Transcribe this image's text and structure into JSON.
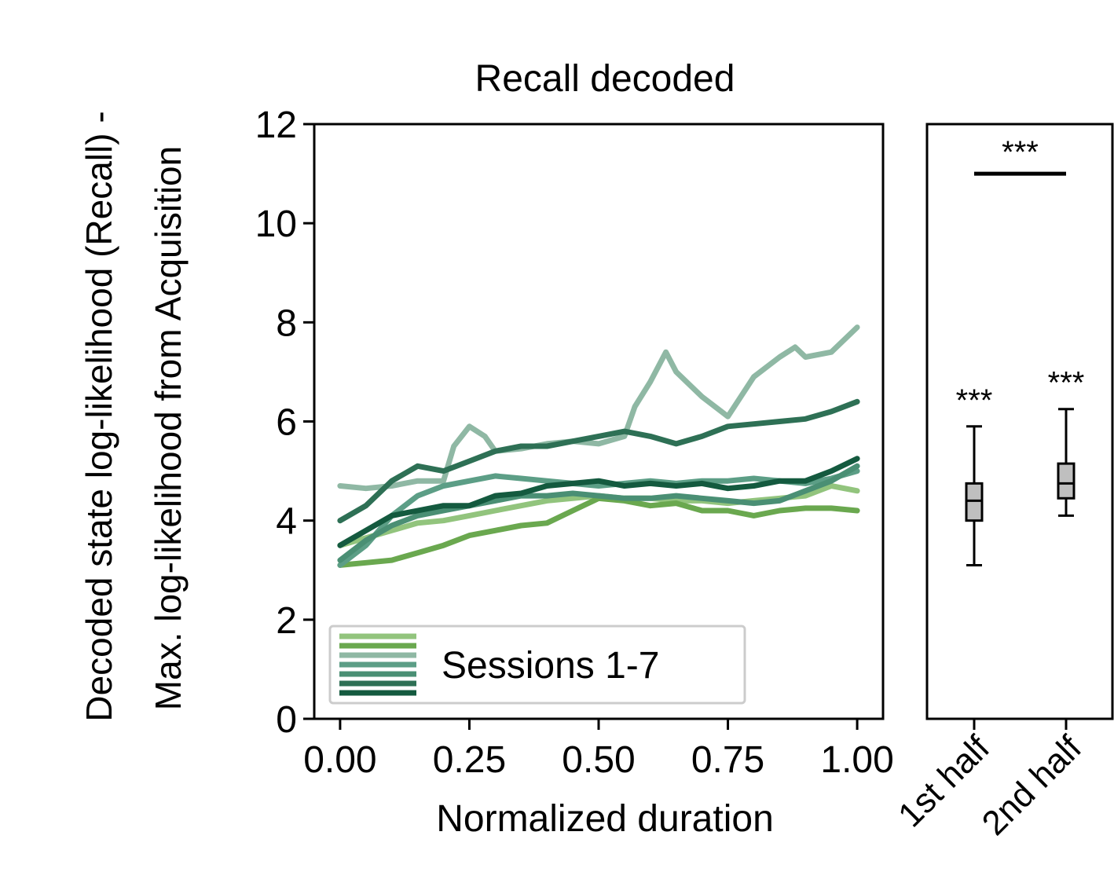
{
  "chart_data": [
    {
      "type": "line",
      "title": "Recall decoded",
      "xlabel": "Normalized duration",
      "ylabel": [
        "Decoded state log-likelihood (Recall) -",
        "Max. log-likelihood from Acquisition"
      ],
      "xlim": [
        -0.05,
        1.05
      ],
      "ylim": [
        0,
        12
      ],
      "xticks": [
        0,
        0.25,
        0.5,
        0.75,
        1.0
      ],
      "xtick_labels": [
        "0.00",
        "0.25",
        "0.50",
        "0.75",
        "1.00"
      ],
      "yticks": [
        0,
        2,
        4,
        6,
        8,
        10,
        12
      ],
      "ytick_labels": [
        "0",
        "2",
        "4",
        "6",
        "8",
        "10",
        "12"
      ],
      "grid": false,
      "legend": {
        "label": "Sessions 1-7",
        "position": "lower-left"
      },
      "series": [
        {
          "color": "#92c47d",
          "x": [
            0,
            0.05,
            0.1,
            0.15,
            0.2,
            0.25,
            0.3,
            0.35,
            0.4,
            0.45,
            0.5,
            0.55,
            0.6,
            0.65,
            0.7,
            0.75,
            0.8,
            0.85,
            0.9,
            0.95,
            1.0
          ],
          "y": [
            3.5,
            3.65,
            3.8,
            3.95,
            4.0,
            4.1,
            4.2,
            4.3,
            4.4,
            4.45,
            4.5,
            4.45,
            4.45,
            4.4,
            4.4,
            4.35,
            4.4,
            4.45,
            4.5,
            4.7,
            4.6
          ]
        },
        {
          "color": "#6aa84f",
          "x": [
            0,
            0.05,
            0.1,
            0.15,
            0.2,
            0.25,
            0.3,
            0.35,
            0.4,
            0.45,
            0.5,
            0.55,
            0.6,
            0.65,
            0.7,
            0.75,
            0.8,
            0.85,
            0.9,
            0.95,
            1.0
          ],
          "y": [
            3.1,
            3.15,
            3.2,
            3.35,
            3.5,
            3.7,
            3.8,
            3.9,
            3.95,
            4.2,
            4.45,
            4.4,
            4.3,
            4.35,
            4.2,
            4.2,
            4.1,
            4.2,
            4.25,
            4.25,
            4.2
          ]
        },
        {
          "color": "#8fb8a4",
          "x": [
            0,
            0.05,
            0.1,
            0.15,
            0.2,
            0.22,
            0.25,
            0.28,
            0.3,
            0.35,
            0.4,
            0.45,
            0.5,
            0.55,
            0.57,
            0.6,
            0.63,
            0.65,
            0.7,
            0.75,
            0.8,
            0.85,
            0.88,
            0.9,
            0.95,
            1.0
          ],
          "y": [
            4.7,
            4.65,
            4.7,
            4.8,
            4.8,
            5.5,
            5.9,
            5.7,
            5.4,
            5.45,
            5.55,
            5.6,
            5.55,
            5.7,
            6.3,
            6.8,
            7.4,
            7.0,
            6.5,
            6.1,
            6.9,
            7.3,
            7.5,
            7.3,
            7.4,
            7.9
          ]
        },
        {
          "color": "#5c9e86",
          "x": [
            0,
            0.05,
            0.1,
            0.15,
            0.2,
            0.25,
            0.3,
            0.35,
            0.4,
            0.45,
            0.5,
            0.55,
            0.6,
            0.65,
            0.7,
            0.75,
            0.8,
            0.85,
            0.9,
            0.95,
            1.0
          ],
          "y": [
            3.1,
            3.5,
            4.1,
            4.5,
            4.7,
            4.8,
            4.9,
            4.85,
            4.8,
            4.75,
            4.7,
            4.75,
            4.8,
            4.75,
            4.8,
            4.8,
            4.85,
            4.8,
            4.75,
            4.85,
            5.0
          ]
        },
        {
          "color": "#4a8f74",
          "x": [
            0,
            0.05,
            0.1,
            0.15,
            0.2,
            0.25,
            0.3,
            0.35,
            0.4,
            0.45,
            0.5,
            0.55,
            0.6,
            0.65,
            0.7,
            0.75,
            0.8,
            0.85,
            0.9,
            0.95,
            1.0
          ],
          "y": [
            3.2,
            3.6,
            3.9,
            4.1,
            4.2,
            4.3,
            4.4,
            4.5,
            4.5,
            4.55,
            4.5,
            4.45,
            4.45,
            4.5,
            4.45,
            4.4,
            4.35,
            4.4,
            4.6,
            4.8,
            5.1
          ]
        },
        {
          "color": "#2e7055",
          "x": [
            0,
            0.05,
            0.1,
            0.15,
            0.2,
            0.25,
            0.3,
            0.35,
            0.4,
            0.45,
            0.5,
            0.55,
            0.6,
            0.65,
            0.7,
            0.75,
            0.8,
            0.85,
            0.9,
            0.95,
            1.0
          ],
          "y": [
            4.0,
            4.3,
            4.8,
            5.1,
            5.0,
            5.2,
            5.4,
            5.5,
            5.5,
            5.6,
            5.7,
            5.8,
            5.7,
            5.55,
            5.7,
            5.9,
            5.95,
            6.0,
            6.05,
            6.2,
            6.4
          ]
        },
        {
          "color": "#145a3f",
          "x": [
            0,
            0.05,
            0.1,
            0.15,
            0.2,
            0.25,
            0.3,
            0.35,
            0.4,
            0.45,
            0.5,
            0.55,
            0.6,
            0.65,
            0.7,
            0.75,
            0.8,
            0.85,
            0.9,
            0.95,
            1.0
          ],
          "y": [
            3.5,
            3.8,
            4.1,
            4.2,
            4.3,
            4.3,
            4.5,
            4.55,
            4.7,
            4.75,
            4.8,
            4.7,
            4.75,
            4.7,
            4.75,
            4.65,
            4.7,
            4.8,
            4.8,
            5.0,
            5.25
          ]
        }
      ]
    },
    {
      "type": "box",
      "categories": [
        "1st half",
        "2nd half"
      ],
      "ylim": [
        0,
        12
      ],
      "boxes": [
        {
          "whisker_low": 3.1,
          "q1": 4.0,
          "median": 4.4,
          "q3": 4.75,
          "whisker_high": 5.9,
          "annotation": "***"
        },
        {
          "whisker_low": 4.1,
          "q1": 4.45,
          "median": 4.75,
          "q3": 5.15,
          "whisker_high": 6.25,
          "annotation": "***"
        }
      ],
      "significance_bar": {
        "from": "1st half",
        "to": "2nd half",
        "y": 11.0,
        "label": "***"
      },
      "box_color": "#bfbfbf"
    }
  ]
}
